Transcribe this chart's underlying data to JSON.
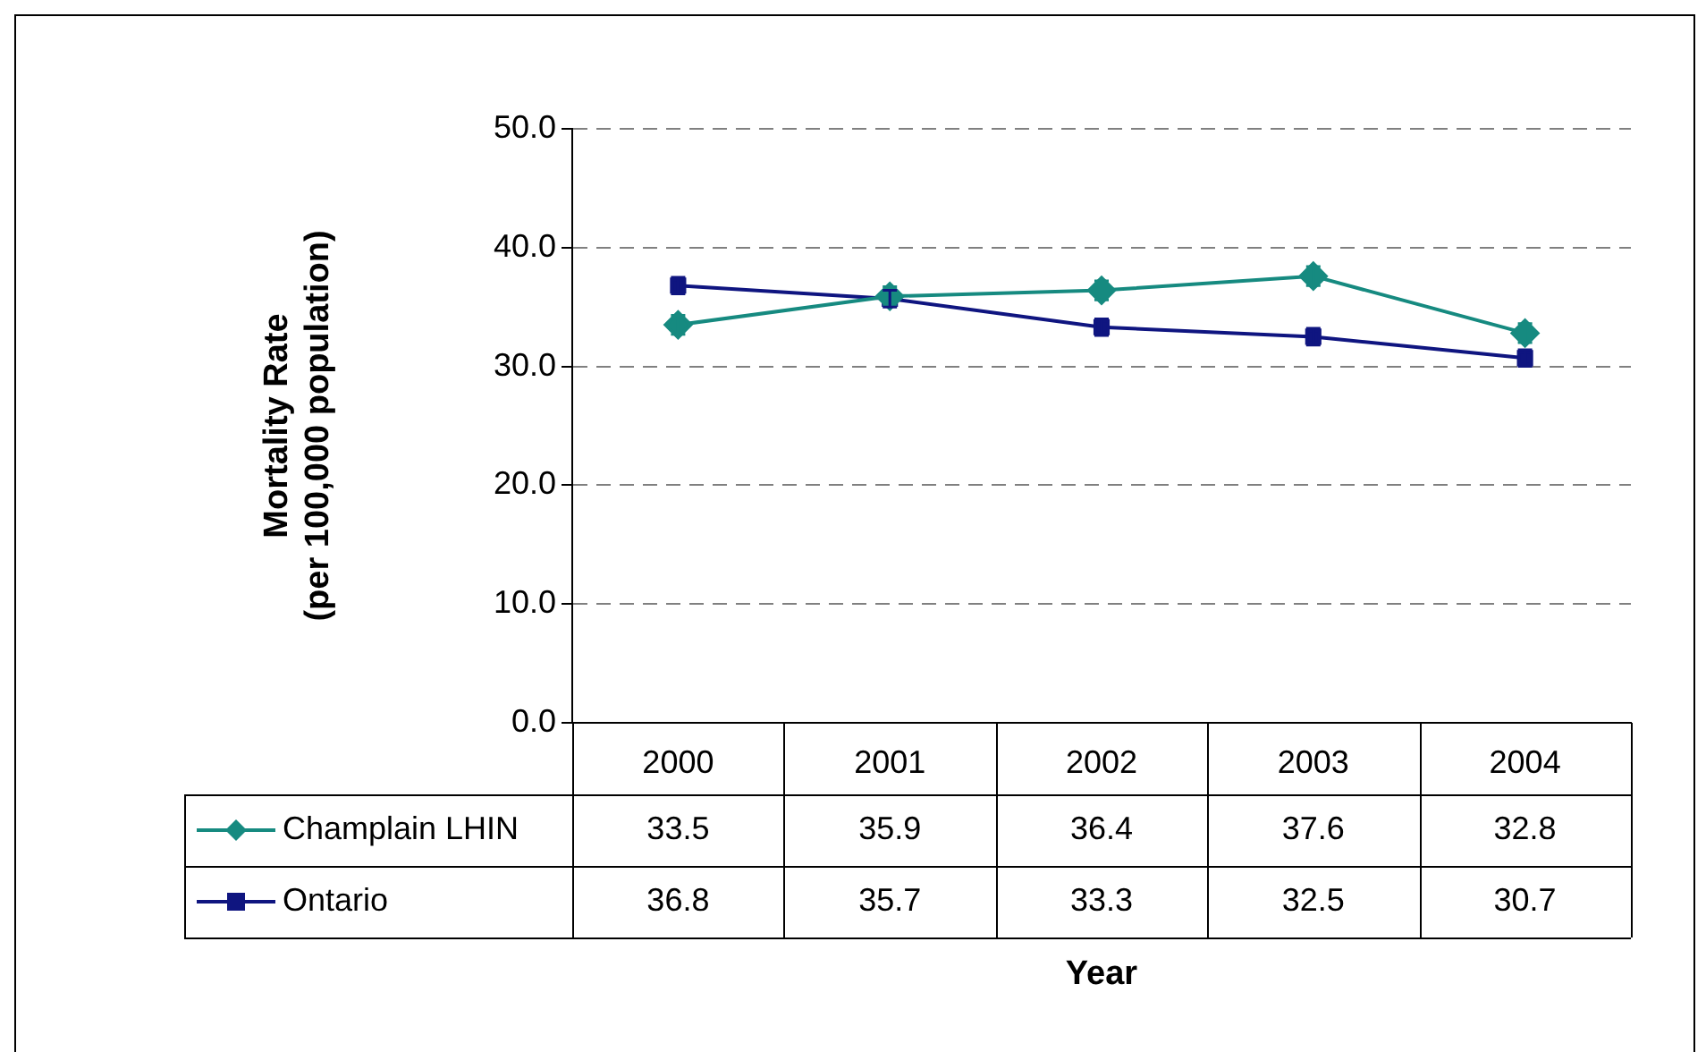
{
  "chart_data": {
    "type": "line",
    "annotations": [
      "Year"
    ],
    "ylabel": "Mortality Rate\n(per 100,000 population)",
    "categories": [
      "2000",
      "2001",
      "2002",
      "2003",
      "2004"
    ],
    "series": [
      {
        "name": "Champlain LHIN",
        "color": "#168a80",
        "marker": "diamond",
        "values": [
          33.5,
          35.9,
          36.4,
          37.6,
          32.8
        ],
        "errors": [
          0.8,
          0.8,
          0.8,
          0.8,
          0.8
        ]
      },
      {
        "name": "Ontario",
        "color": "#0f1580",
        "marker": "square",
        "values": [
          36.8,
          35.7,
          33.3,
          32.5,
          30.7
        ],
        "errors": [
          0.7,
          0.7,
          0.7,
          0.7,
          0.7
        ]
      }
    ],
    "ylim": [
      0,
      50
    ],
    "yticks": [
      {
        "value": 0,
        "label": "0.0"
      },
      {
        "value": 10,
        "label": "10.0"
      },
      {
        "value": 20,
        "label": "20.0"
      },
      {
        "value": 30,
        "label": "30.0"
      },
      {
        "value": 40,
        "label": "40.0"
      },
      {
        "value": 50,
        "label": "50.0"
      }
    ],
    "grid": "y",
    "legend": "bottom",
    "data_labels": true,
    "line_style": "solid"
  }
}
